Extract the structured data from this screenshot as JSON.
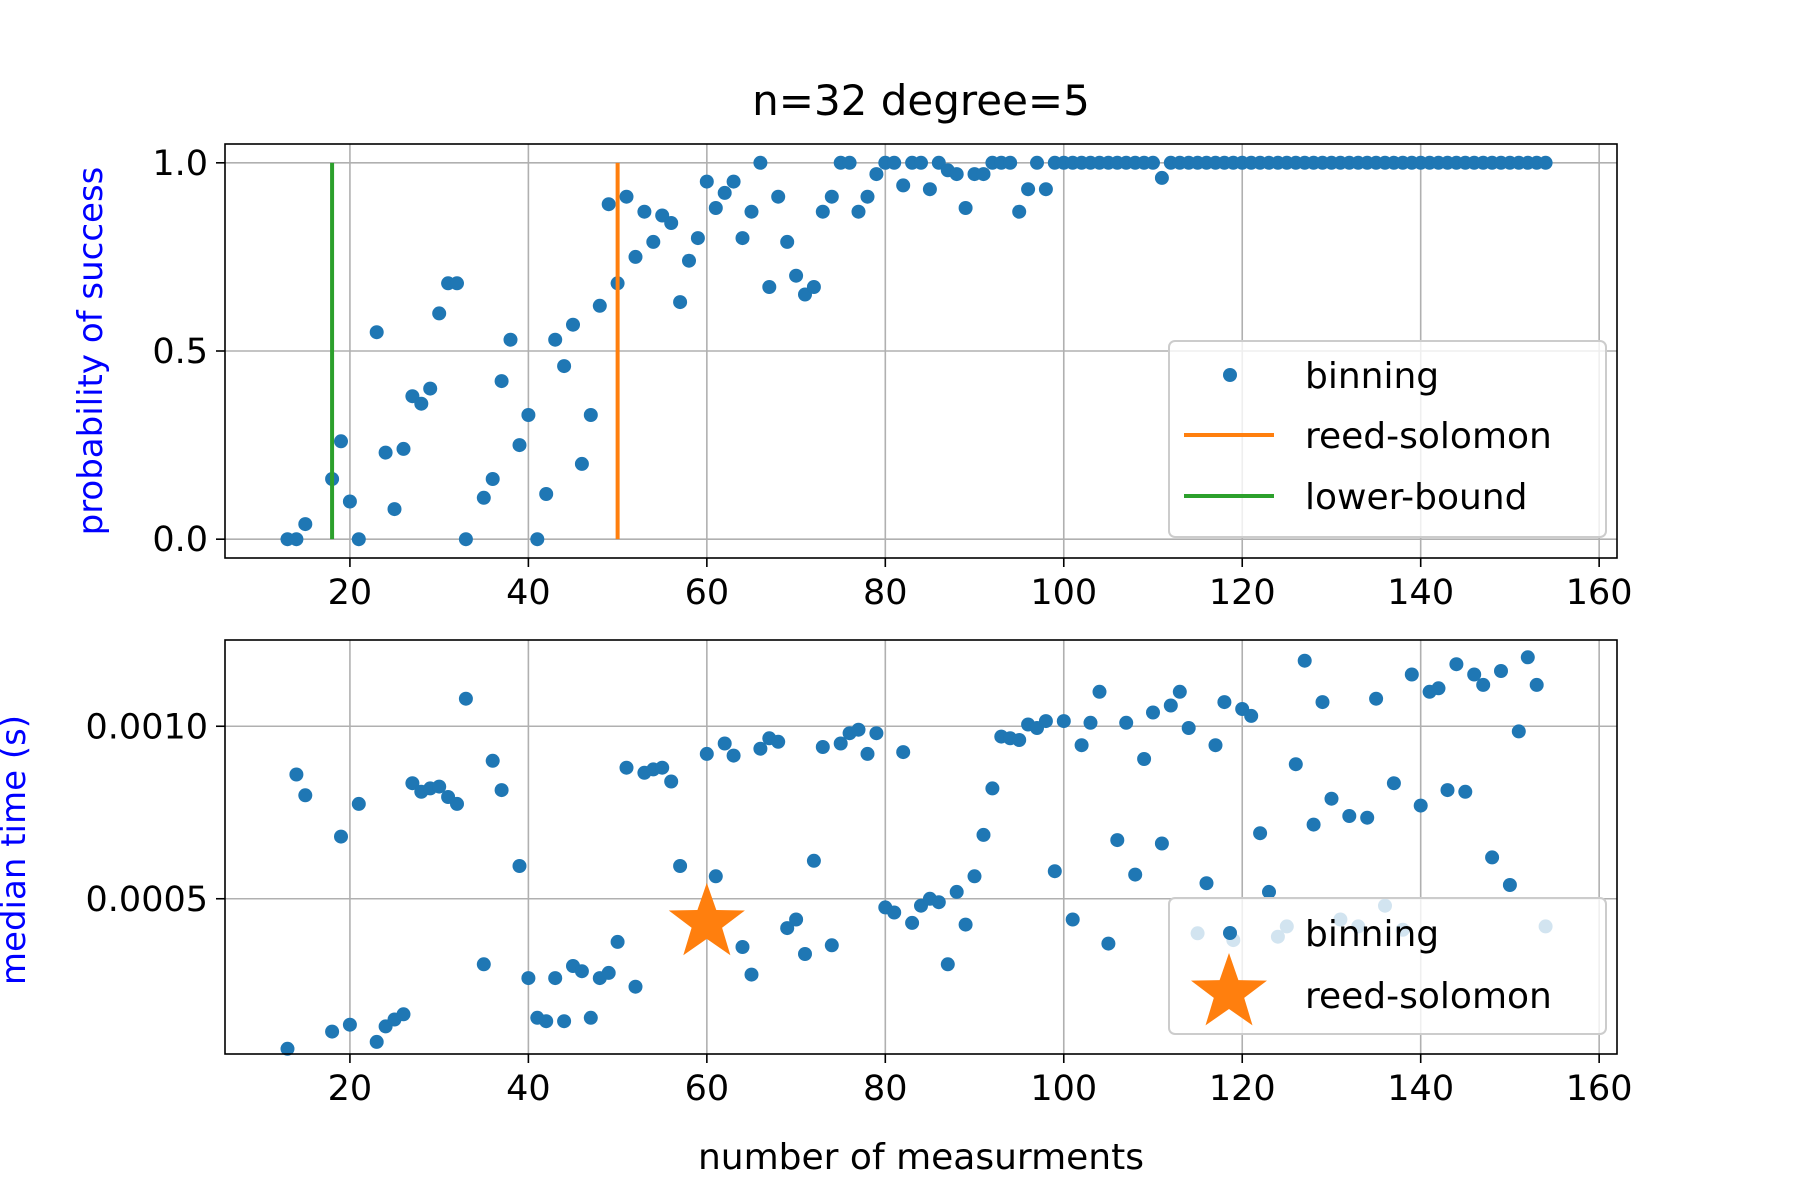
{
  "figure": {
    "title": "n=32 degree=5",
    "xlabel": "number of measurments"
  },
  "colors": {
    "binning": "#1f77b4",
    "reed_solomon": "#ff7f0e",
    "lower_bound": "#2ca02c",
    "ylabel": "#0000ff",
    "grid": "#b0b0b0",
    "axes": "#000000"
  },
  "chart_data": [
    {
      "type": "scatter",
      "panel": "top",
      "title": "n=32 degree=5",
      "xlabel": "",
      "ylabel": "probability of success",
      "xlim": [
        6,
        162
      ],
      "ylim": [
        -0.05,
        1.05
      ],
      "xticks": [
        20,
        40,
        60,
        80,
        100,
        120,
        140,
        160
      ],
      "xtick_labels": [
        "20",
        "40",
        "60",
        "80",
        "100",
        "120",
        "140",
        "160"
      ],
      "yticks": [
        0.0,
        0.5,
        1.0
      ],
      "ytick_labels": [
        "0.0",
        "0.5",
        "1.0"
      ],
      "grid": true,
      "legend": {
        "position": "lower-right",
        "entries": [
          "binning",
          "reed-solomon",
          "lower-bound"
        ]
      },
      "series": [
        {
          "name": "binning",
          "kind": "points",
          "x": [
            13,
            14,
            15,
            18,
            19,
            20,
            21,
            23,
            24,
            25,
            26,
            27,
            28,
            29,
            30,
            31,
            32,
            33,
            35,
            36,
            37,
            38,
            39,
            40,
            41,
            42,
            43,
            44,
            45,
            46,
            47,
            48,
            49,
            50,
            51,
            52,
            53,
            54,
            55,
            56,
            57,
            58,
            59,
            60,
            61,
            62,
            63,
            64,
            65,
            66,
            67,
            68,
            69,
            70,
            71,
            72,
            73,
            74,
            75,
            76,
            77,
            78,
            79,
            80,
            81,
            82,
            83,
            84,
            85,
            86,
            87,
            88,
            89,
            90,
            91,
            92,
            93,
            94,
            95,
            96,
            97,
            98,
            99,
            100,
            101,
            102,
            103,
            104,
            105,
            106,
            107,
            108,
            109,
            110,
            111,
            112,
            113,
            114,
            115,
            116,
            117,
            118,
            119,
            120,
            121,
            122,
            123,
            124,
            125,
            126,
            127,
            128,
            129,
            130,
            131,
            132,
            133,
            134,
            135,
            136,
            137,
            138,
            139,
            140,
            141,
            142,
            143,
            144,
            145,
            146,
            147,
            148,
            149,
            150,
            151,
            152,
            153,
            154
          ],
          "y": [
            0.0,
            0.0,
            0.04,
            0.16,
            0.26,
            0.1,
            0.0,
            0.55,
            0.23,
            0.08,
            0.24,
            0.38,
            0.36,
            0.4,
            0.6,
            0.68,
            0.68,
            0.0,
            0.11,
            0.16,
            0.42,
            0.53,
            0.25,
            0.33,
            0.0,
            0.12,
            0.53,
            0.46,
            0.57,
            0.2,
            0.33,
            0.62,
            0.89,
            0.68,
            0.91,
            0.75,
            0.87,
            0.79,
            0.86,
            0.84,
            0.63,
            0.74,
            0.8,
            0.95,
            0.88,
            0.92,
            0.95,
            0.8,
            0.87,
            1.0,
            0.67,
            0.91,
            0.79,
            0.7,
            0.65,
            0.67,
            0.87,
            0.91,
            1.0,
            1.0,
            0.87,
            0.91,
            0.97,
            1.0,
            1.0,
            0.94,
            1.0,
            1.0,
            0.93,
            1.0,
            0.98,
            0.97,
            0.88,
            0.97,
            0.97,
            1.0,
            1.0,
            1.0,
            0.87,
            0.93,
            1.0,
            0.93,
            1.0,
            1.0,
            1.0,
            1.0,
            1.0,
            1.0,
            1.0,
            1.0,
            1.0,
            1.0,
            1.0,
            1.0,
            0.96,
            1.0,
            1.0,
            1.0,
            1.0,
            1.0,
            1.0,
            1.0,
            1.0,
            1.0,
            1.0,
            1.0,
            1.0,
            1.0,
            1.0,
            1.0,
            1.0,
            1.0,
            1.0,
            1.0,
            1.0,
            1.0,
            1.0,
            1.0,
            1.0,
            1.0,
            1.0,
            1.0,
            1.0,
            1.0,
            1.0,
            1.0,
            1.0,
            1.0,
            1.0,
            1.0,
            1.0,
            1.0,
            1.0,
            1.0,
            1.0,
            1.0,
            1.0,
            1.0
          ]
        },
        {
          "name": "reed-solomon",
          "kind": "vline",
          "x": 50,
          "y": [
            0.0,
            1.0
          ]
        },
        {
          "name": "lower-bound",
          "kind": "vline",
          "x": 18,
          "y": [
            0.0,
            1.0
          ]
        }
      ]
    },
    {
      "type": "scatter",
      "panel": "bottom",
      "title": "",
      "xlabel": "number of measurments",
      "ylabel": "median time (s)",
      "xlim": [
        6,
        162
      ],
      "ylim": [
        5e-05,
        0.00125
      ],
      "xticks": [
        20,
        40,
        60,
        80,
        100,
        120,
        140,
        160
      ],
      "xtick_labels": [
        "20",
        "40",
        "60",
        "80",
        "100",
        "120",
        "140",
        "160"
      ],
      "yticks": [
        0.0005,
        0.001
      ],
      "ytick_labels": [
        "0.0005",
        "0.0010"
      ],
      "grid": true,
      "legend": {
        "position": "lower-right",
        "entries": [
          "binning",
          "reed-solomon"
        ]
      },
      "series": [
        {
          "name": "binning",
          "kind": "points",
          "x": [
            13,
            14,
            15,
            18,
            19,
            20,
            21,
            23,
            24,
            25,
            26,
            27,
            28,
            29,
            30,
            31,
            32,
            33,
            35,
            36,
            37,
            39,
            40,
            41,
            42,
            43,
            44,
            45,
            46,
            47,
            48,
            49,
            50,
            51,
            52,
            53,
            54,
            55,
            56,
            57,
            59,
            60,
            61,
            62,
            63,
            64,
            65,
            66,
            67,
            68,
            69,
            70,
            71,
            72,
            73,
            74,
            75,
            76,
            77,
            78,
            79,
            80,
            81,
            82,
            83,
            84,
            85,
            86,
            87,
            88,
            89,
            90,
            91,
            92,
            93,
            94,
            95,
            96,
            97,
            98,
            99,
            100,
            101,
            102,
            103,
            104,
            105,
            106,
            107,
            108,
            109,
            110,
            111,
            112,
            113,
            114,
            115,
            116,
            117,
            118,
            119,
            120,
            121,
            122,
            123,
            124,
            125,
            126,
            127,
            128,
            129,
            130,
            131,
            132,
            133,
            134,
            135,
            136,
            137,
            138,
            139,
            140,
            141,
            142,
            143,
            144,
            145,
            146,
            147,
            148,
            149,
            150,
            151,
            152,
            153,
            154
          ],
          "y": [
            6.5e-05,
            0.00086,
            0.0008,
            0.000115,
            0.00068,
            0.000135,
            0.000775,
            8.5e-05,
            0.00013,
            0.00015,
            0.000165,
            0.000835,
            0.00081,
            0.00082,
            0.000825,
            0.000795,
            0.000775,
            0.00108,
            0.00031,
            0.0009,
            0.000815,
            0.000595,
            0.00027,
            0.000155,
            0.000145,
            0.00027,
            0.000145,
            0.000305,
            0.00029,
            0.000155,
            0.00027,
            0.000285,
            0.000375,
            0.00088,
            0.000245,
            0.000865,
            0.000875,
            0.00088,
            0.00084,
            0.000595,
            0.000435,
            0.00092,
            0.000565,
            0.00095,
            0.000915,
            0.00036,
            0.00028,
            0.000935,
            0.000965,
            0.000955,
            0.000415,
            0.00044,
            0.00034,
            0.00061,
            0.00094,
            0.000365,
            0.00095,
            0.00098,
            0.00099,
            0.00092,
            0.00098,
            0.000475,
            0.00046,
            0.000925,
            0.00043,
            0.00048,
            0.0005,
            0.00049,
            0.00031,
            0.00052,
            0.000425,
            0.000565,
            0.000685,
            0.00082,
            0.00097,
            0.000965,
            0.00096,
            0.001005,
            0.000995,
            0.001015,
            0.00058,
            0.001015,
            0.00044,
            0.000945,
            0.00101,
            0.0011,
            0.00037,
            0.00067,
            0.00101,
            0.00057,
            0.000905,
            0.00104,
            0.00066,
            0.00106,
            0.0011,
            0.000995,
            0.0004,
            0.000545,
            0.000945,
            0.00107,
            0.00038,
            0.00105,
            0.00103,
            0.00069,
            0.00052,
            0.00039,
            0.00042,
            0.00089,
            0.00119,
            0.000715,
            0.00107,
            0.00079,
            0.00044,
            0.00074,
            0.00042,
            0.000735,
            0.00108,
            0.00048,
            0.000835,
            0.00041,
            0.00115,
            0.00077,
            0.0011,
            0.00111,
            0.000815,
            0.00118,
            0.00081,
            0.00115,
            0.00112,
            0.00062,
            0.00116,
            0.00054,
            0.000985,
            0.0012,
            0.00112,
            0.00042
          ]
        },
        {
          "name": "reed-solomon",
          "kind": "star",
          "x": [
            60
          ],
          "y": [
            0.00043
          ]
        }
      ]
    }
  ]
}
